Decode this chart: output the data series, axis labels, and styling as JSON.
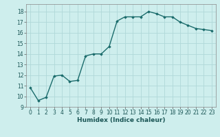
{
  "x": [
    0,
    1,
    2,
    3,
    4,
    5,
    6,
    7,
    8,
    9,
    10,
    11,
    12,
    13,
    14,
    15,
    16,
    17,
    18,
    19,
    20,
    21,
    22,
    23
  ],
  "y": [
    10.8,
    9.6,
    9.9,
    11.9,
    12.0,
    11.4,
    11.5,
    13.8,
    14.0,
    14.0,
    14.7,
    17.1,
    17.5,
    17.5,
    17.5,
    18.0,
    17.8,
    17.5,
    17.5,
    17.0,
    16.7,
    16.4,
    16.3,
    16.2
  ],
  "line_color": "#1a6b6b",
  "marker": "D",
  "marker_size": 1.8,
  "bg_color": "#ceeeed",
  "grid_color": "#b0d8d8",
  "xlabel": "Humidex (Indice chaleur)",
  "xlim": [
    -0.5,
    23.5
  ],
  "ylim": [
    9.0,
    18.7
  ],
  "yticks": [
    9,
    10,
    11,
    12,
    13,
    14,
    15,
    16,
    17,
    18
  ],
  "xticks": [
    0,
    1,
    2,
    3,
    4,
    5,
    6,
    7,
    8,
    9,
    10,
    11,
    12,
    13,
    14,
    15,
    16,
    17,
    18,
    19,
    20,
    21,
    22,
    23
  ],
  "tick_fontsize": 5.5,
  "xlabel_fontsize": 6.5,
  "line_width": 1.0
}
